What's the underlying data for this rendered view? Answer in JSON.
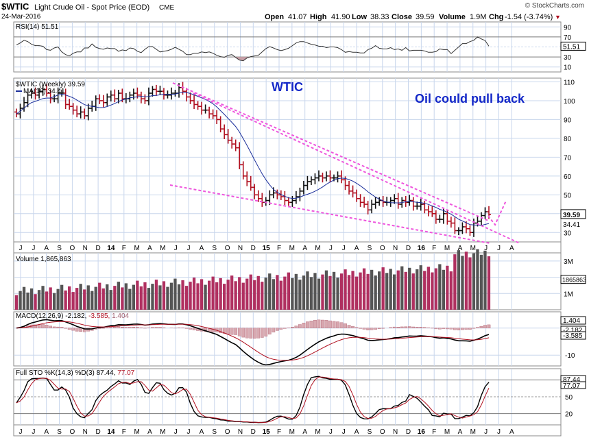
{
  "header": {
    "symbol": "$WTIC",
    "name": "Light Crude Oil - Spot Price (EOD)",
    "exchange": "CME",
    "date": "24-Mar-2016",
    "brand": "© StockCharts.com",
    "open_label": "Open",
    "open": "41.07",
    "high_label": "High",
    "high": "41.90",
    "low_label": "Low",
    "low": "38.33",
    "close_label": "Close",
    "close": "39.59",
    "volume_label": "Volume",
    "volume": "1.9M",
    "chg_label": "Chg",
    "chg": "-1.54 (-3.74%)",
    "chg_arrow": "▼"
  },
  "annotations": {
    "title": "WTIC",
    "note": "Oil could pull back"
  },
  "colors": {
    "up": "#111111",
    "down": "#b01020",
    "ma": "#1a2d9a",
    "trendline": "#ee55dd",
    "volume_up": "#555555",
    "volume_down": "#b03060",
    "grid": "#c8d6ec",
    "annotation": "#1428c8"
  },
  "chart_data": [
    {
      "type": "candlestick",
      "panel": "price",
      "label": "$WTIC (Weekly) 39.59",
      "ma_label": "MA(10) 34.41",
      "last_value": 39.59,
      "ma_last": 34.41,
      "ylim": [
        25,
        112
      ],
      "yticks": [
        30,
        40,
        50,
        60,
        70,
        80,
        90,
        100,
        110
      ],
      "x_labels": [
        "J",
        "J",
        "A",
        "S",
        "O",
        "N",
        "D",
        "14",
        "F",
        "M",
        "A",
        "M",
        "J",
        "J",
        "A",
        "S",
        "O",
        "N",
        "D",
        "15",
        "F",
        "M",
        "A",
        "M",
        "J",
        "J",
        "A",
        "S",
        "O",
        "N",
        "D",
        "16",
        "F",
        "M",
        "A",
        "M",
        "J",
        "J",
        "A"
      ],
      "closes": [
        93,
        96,
        99,
        103,
        104,
        103,
        105,
        106,
        104,
        101,
        101,
        104,
        104,
        98,
        97,
        95,
        93,
        94,
        92,
        96,
        97,
        101,
        100,
        99,
        102,
        103,
        101,
        104,
        101,
        101,
        103,
        104,
        103,
        101,
        100,
        104,
        106,
        105,
        105,
        103,
        103,
        104,
        104,
        107,
        105,
        102,
        100,
        98,
        97,
        95,
        95,
        93,
        92,
        90,
        85,
        82,
        79,
        77,
        75,
        66,
        60,
        57,
        54,
        50,
        48,
        46,
        47,
        50,
        51,
        50,
        49,
        47,
        46,
        47,
        49,
        52,
        55,
        57,
        58,
        59,
        60,
        59,
        60,
        59,
        59,
        60,
        58,
        55,
        52,
        51,
        48,
        46,
        45,
        42,
        45,
        46,
        47,
        46,
        46,
        47,
        48,
        45,
        47,
        46,
        47,
        44,
        44,
        45,
        42,
        41,
        40,
        37,
        37,
        40,
        36,
        35,
        31,
        31,
        33,
        32,
        30,
        35,
        36,
        39,
        41,
        39.59
      ]
    },
    {
      "type": "bar",
      "panel": "volume",
      "label": "Volume 1,865,863",
      "last_value": "1865863",
      "yticks": [
        "3M",
        "2M",
        "1M"
      ],
      "ylim": [
        0,
        3.5
      ]
    },
    {
      "type": "line",
      "panel": "macd",
      "label_prefix": "MACD(12,26,9)",
      "macd": "-2.182",
      "signal": "-3.585",
      "hist": "1.404",
      "yticks": [
        0,
        -10
      ],
      "ylim": [
        -14,
        6
      ]
    },
    {
      "type": "line",
      "panel": "stochastic",
      "label_prefix": "Full STO %K(14,3) %D(3)",
      "k": "87.44",
      "d": "77.07",
      "yticks": [
        80,
        50,
        20
      ],
      "ylim": [
        0,
        100
      ]
    },
    {
      "type": "line",
      "panel": "rsi",
      "label": "RSI(14) 51.51",
      "last": "51.51",
      "yticks": [
        90,
        70,
        50,
        30,
        10
      ],
      "ylim": [
        0,
        100
      ]
    }
  ]
}
